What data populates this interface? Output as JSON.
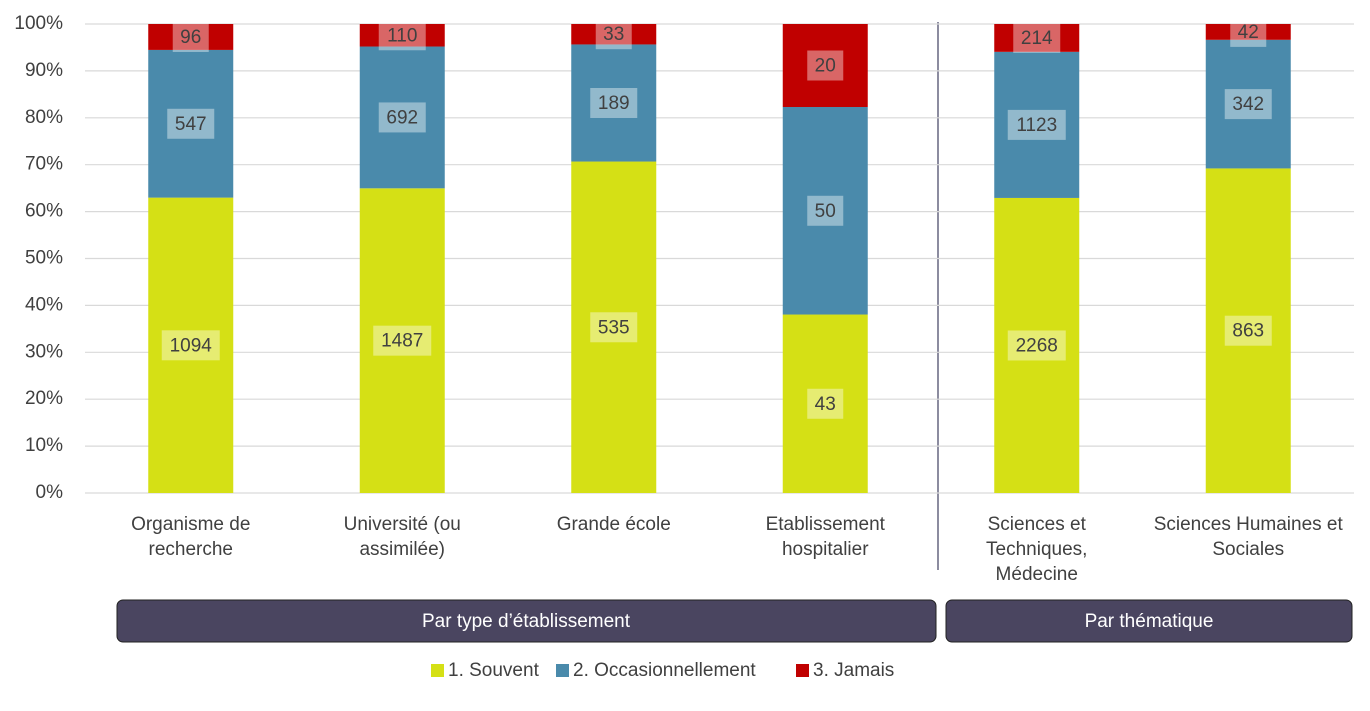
{
  "chart_data": {
    "type": "bar",
    "stacked": "percent",
    "categories": [
      [
        "Organisme de",
        "recherche"
      ],
      [
        "Université (ou",
        "assimilée)"
      ],
      [
        "Grande école"
      ],
      [
        "Etablissement",
        "hospitalier"
      ],
      [
        "Sciences et",
        "Techniques,",
        "Médecine"
      ],
      [
        "Sciences Humaines et",
        "Sociales"
      ]
    ],
    "series": [
      {
        "name": "1. Souvent",
        "color": "#d5e015",
        "values": [
          1094,
          1487,
          535,
          43,
          2268,
          863
        ]
      },
      {
        "name": "2. Occasionnellement",
        "color": "#4a8aab",
        "values": [
          547,
          692,
          189,
          50,
          1123,
          342
        ]
      },
      {
        "name": "3. Jamais",
        "color": "#c00000",
        "values": [
          96,
          110,
          33,
          20,
          214,
          42
        ]
      }
    ],
    "ylim": [
      0,
      100
    ],
    "yticks": [
      {
        "value": 0,
        "label": "0%"
      },
      {
        "value": 10,
        "label": "10%"
      },
      {
        "value": 20,
        "label": "20%"
      },
      {
        "value": 30,
        "label": "30%"
      },
      {
        "value": 40,
        "label": "40%"
      },
      {
        "value": 50,
        "label": "50%"
      },
      {
        "value": 60,
        "label": "60%"
      },
      {
        "value": 70,
        "label": "70%"
      },
      {
        "value": 80,
        "label": "80%"
      },
      {
        "value": 90,
        "label": "90%"
      },
      {
        "value": 100,
        "label": "100%"
      }
    ],
    "grid": true,
    "legend": "bottom",
    "groups": [
      "Par type d’établissement",
      "Par thématique"
    ]
  }
}
